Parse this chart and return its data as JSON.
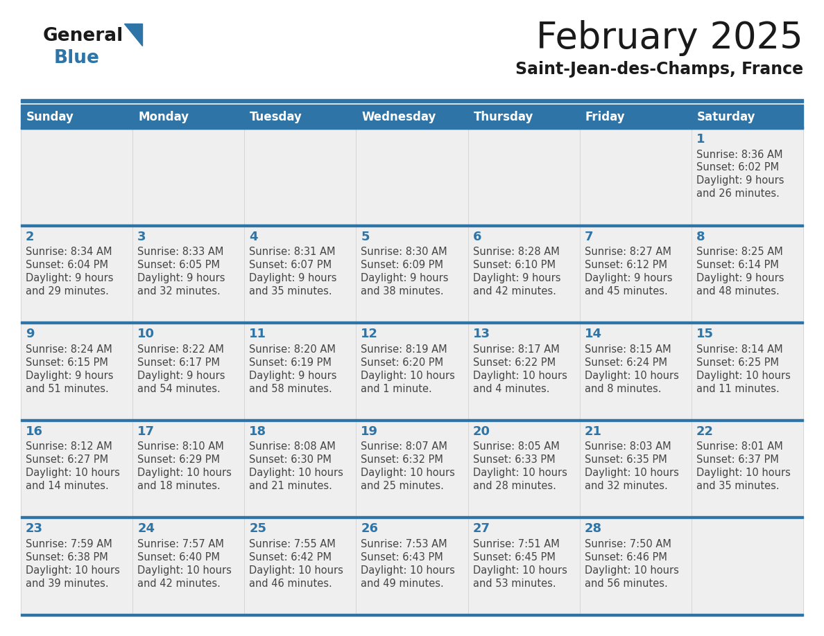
{
  "title": "February 2025",
  "subtitle": "Saint-Jean-des-Champs, France",
  "days_of_week": [
    "Sunday",
    "Monday",
    "Tuesday",
    "Wednesday",
    "Thursday",
    "Friday",
    "Saturday"
  ],
  "header_bg": "#2E74A6",
  "header_text_color": "#FFFFFF",
  "cell_bg": "#EFEFEF",
  "day_number_color": "#2E74A6",
  "info_text_color": "#444444",
  "separator_color": "#2E74A6",
  "calendar_data": [
    [
      null,
      null,
      null,
      null,
      null,
      null,
      {
        "day": "1",
        "sunrise": "8:36 AM",
        "sunset": "6:02 PM",
        "daylight_line1": "Daylight: 9 hours",
        "daylight_line2": "and 26 minutes."
      }
    ],
    [
      {
        "day": "2",
        "sunrise": "8:34 AM",
        "sunset": "6:04 PM",
        "daylight_line1": "Daylight: 9 hours",
        "daylight_line2": "and 29 minutes."
      },
      {
        "day": "3",
        "sunrise": "8:33 AM",
        "sunset": "6:05 PM",
        "daylight_line1": "Daylight: 9 hours",
        "daylight_line2": "and 32 minutes."
      },
      {
        "day": "4",
        "sunrise": "8:31 AM",
        "sunset": "6:07 PM",
        "daylight_line1": "Daylight: 9 hours",
        "daylight_line2": "and 35 minutes."
      },
      {
        "day": "5",
        "sunrise": "8:30 AM",
        "sunset": "6:09 PM",
        "daylight_line1": "Daylight: 9 hours",
        "daylight_line2": "and 38 minutes."
      },
      {
        "day": "6",
        "sunrise": "8:28 AM",
        "sunset": "6:10 PM",
        "daylight_line1": "Daylight: 9 hours",
        "daylight_line2": "and 42 minutes."
      },
      {
        "day": "7",
        "sunrise": "8:27 AM",
        "sunset": "6:12 PM",
        "daylight_line1": "Daylight: 9 hours",
        "daylight_line2": "and 45 minutes."
      },
      {
        "day": "8",
        "sunrise": "8:25 AM",
        "sunset": "6:14 PM",
        "daylight_line1": "Daylight: 9 hours",
        "daylight_line2": "and 48 minutes."
      }
    ],
    [
      {
        "day": "9",
        "sunrise": "8:24 AM",
        "sunset": "6:15 PM",
        "daylight_line1": "Daylight: 9 hours",
        "daylight_line2": "and 51 minutes."
      },
      {
        "day": "10",
        "sunrise": "8:22 AM",
        "sunset": "6:17 PM",
        "daylight_line1": "Daylight: 9 hours",
        "daylight_line2": "and 54 minutes."
      },
      {
        "day": "11",
        "sunrise": "8:20 AM",
        "sunset": "6:19 PM",
        "daylight_line1": "Daylight: 9 hours",
        "daylight_line2": "and 58 minutes."
      },
      {
        "day": "12",
        "sunrise": "8:19 AM",
        "sunset": "6:20 PM",
        "daylight_line1": "Daylight: 10 hours",
        "daylight_line2": "and 1 minute."
      },
      {
        "day": "13",
        "sunrise": "8:17 AM",
        "sunset": "6:22 PM",
        "daylight_line1": "Daylight: 10 hours",
        "daylight_line2": "and 4 minutes."
      },
      {
        "day": "14",
        "sunrise": "8:15 AM",
        "sunset": "6:24 PM",
        "daylight_line1": "Daylight: 10 hours",
        "daylight_line2": "and 8 minutes."
      },
      {
        "day": "15",
        "sunrise": "8:14 AM",
        "sunset": "6:25 PM",
        "daylight_line1": "Daylight: 10 hours",
        "daylight_line2": "and 11 minutes."
      }
    ],
    [
      {
        "day": "16",
        "sunrise": "8:12 AM",
        "sunset": "6:27 PM",
        "daylight_line1": "Daylight: 10 hours",
        "daylight_line2": "and 14 minutes."
      },
      {
        "day": "17",
        "sunrise": "8:10 AM",
        "sunset": "6:29 PM",
        "daylight_line1": "Daylight: 10 hours",
        "daylight_line2": "and 18 minutes."
      },
      {
        "day": "18",
        "sunrise": "8:08 AM",
        "sunset": "6:30 PM",
        "daylight_line1": "Daylight: 10 hours",
        "daylight_line2": "and 21 minutes."
      },
      {
        "day": "19",
        "sunrise": "8:07 AM",
        "sunset": "6:32 PM",
        "daylight_line1": "Daylight: 10 hours",
        "daylight_line2": "and 25 minutes."
      },
      {
        "day": "20",
        "sunrise": "8:05 AM",
        "sunset": "6:33 PM",
        "daylight_line1": "Daylight: 10 hours",
        "daylight_line2": "and 28 minutes."
      },
      {
        "day": "21",
        "sunrise": "8:03 AM",
        "sunset": "6:35 PM",
        "daylight_line1": "Daylight: 10 hours",
        "daylight_line2": "and 32 minutes."
      },
      {
        "day": "22",
        "sunrise": "8:01 AM",
        "sunset": "6:37 PM",
        "daylight_line1": "Daylight: 10 hours",
        "daylight_line2": "and 35 minutes."
      }
    ],
    [
      {
        "day": "23",
        "sunrise": "7:59 AM",
        "sunset": "6:38 PM",
        "daylight_line1": "Daylight: 10 hours",
        "daylight_line2": "and 39 minutes."
      },
      {
        "day": "24",
        "sunrise": "7:57 AM",
        "sunset": "6:40 PM",
        "daylight_line1": "Daylight: 10 hours",
        "daylight_line2": "and 42 minutes."
      },
      {
        "day": "25",
        "sunrise": "7:55 AM",
        "sunset": "6:42 PM",
        "daylight_line1": "Daylight: 10 hours",
        "daylight_line2": "and 46 minutes."
      },
      {
        "day": "26",
        "sunrise": "7:53 AM",
        "sunset": "6:43 PM",
        "daylight_line1": "Daylight: 10 hours",
        "daylight_line2": "and 49 minutes."
      },
      {
        "day": "27",
        "sunrise": "7:51 AM",
        "sunset": "6:45 PM",
        "daylight_line1": "Daylight: 10 hours",
        "daylight_line2": "and 53 minutes."
      },
      {
        "day": "28",
        "sunrise": "7:50 AM",
        "sunset": "6:46 PM",
        "daylight_line1": "Daylight: 10 hours",
        "daylight_line2": "and 56 minutes."
      },
      null
    ]
  ]
}
